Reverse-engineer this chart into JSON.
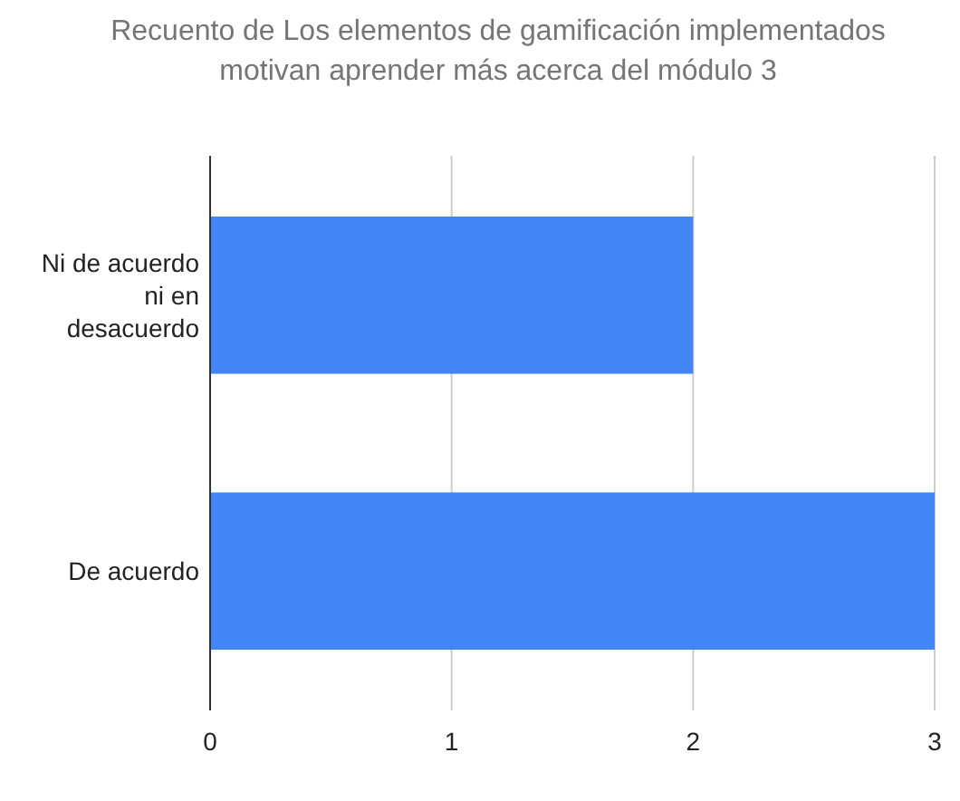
{
  "chart_data": {
    "type": "bar",
    "orientation": "horizontal",
    "title": "Recuento de Los elementos de gamificación implementados motivan aprender más acerca del módulo 3",
    "categories": [
      "Ni de acuerdo ni en desacuerdo",
      "De acuerdo"
    ],
    "values": [
      2,
      3
    ],
    "color": "#4285f4",
    "xlim": [
      0,
      3
    ],
    "xticks": [
      0,
      1,
      2,
      3
    ],
    "grid": "x"
  }
}
